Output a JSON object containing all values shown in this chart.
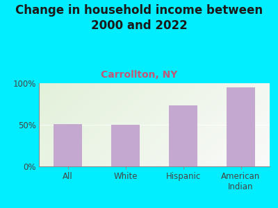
{
  "title": "Change in household income between\n2000 and 2022",
  "subtitle": "Carrollton, NY",
  "categories": [
    "All",
    "White",
    "Hispanic",
    "American\nIndian"
  ],
  "values": [
    51,
    50,
    73,
    95
  ],
  "bar_color": "#c4a8d0",
  "title_fontsize": 12,
  "subtitle_fontsize": 10,
  "subtitle_color": "#c05878",
  "title_color": "#1a1a1a",
  "background_outer": "#00eeff",
  "ylim": [
    0,
    100
  ],
  "yticks": [
    0,
    50,
    100
  ],
  "ytick_labels": [
    "0%",
    "50%",
    "100%"
  ],
  "tick_color": "#444444",
  "axis_color": "#888888"
}
